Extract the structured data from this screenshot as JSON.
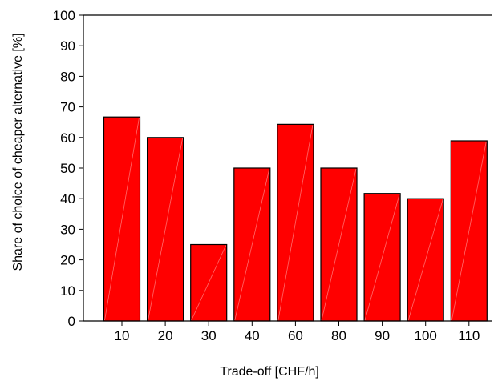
{
  "chart_data": {
    "type": "bar",
    "title": "",
    "xlabel": "Trade-off [CHF/h]",
    "ylabel": "Share of choice of cheaper alternative [%]",
    "categories": [
      "10",
      "20",
      "30",
      "40",
      "60",
      "80",
      "90",
      "100",
      "110"
    ],
    "values": [
      66.7,
      60,
      25,
      50,
      64.3,
      50,
      41.7,
      40,
      58.9
    ],
    "ylim": [
      0,
      100
    ],
    "yticks": [
      0,
      10,
      20,
      30,
      40,
      50,
      60,
      70,
      80,
      90,
      100
    ],
    "grid": false,
    "legend": "none",
    "colors": {
      "bar_fill": "#ff0000",
      "bar_edge": "#000000",
      "bar_highlight": "#ff6b6b",
      "axis": "#000000"
    }
  }
}
